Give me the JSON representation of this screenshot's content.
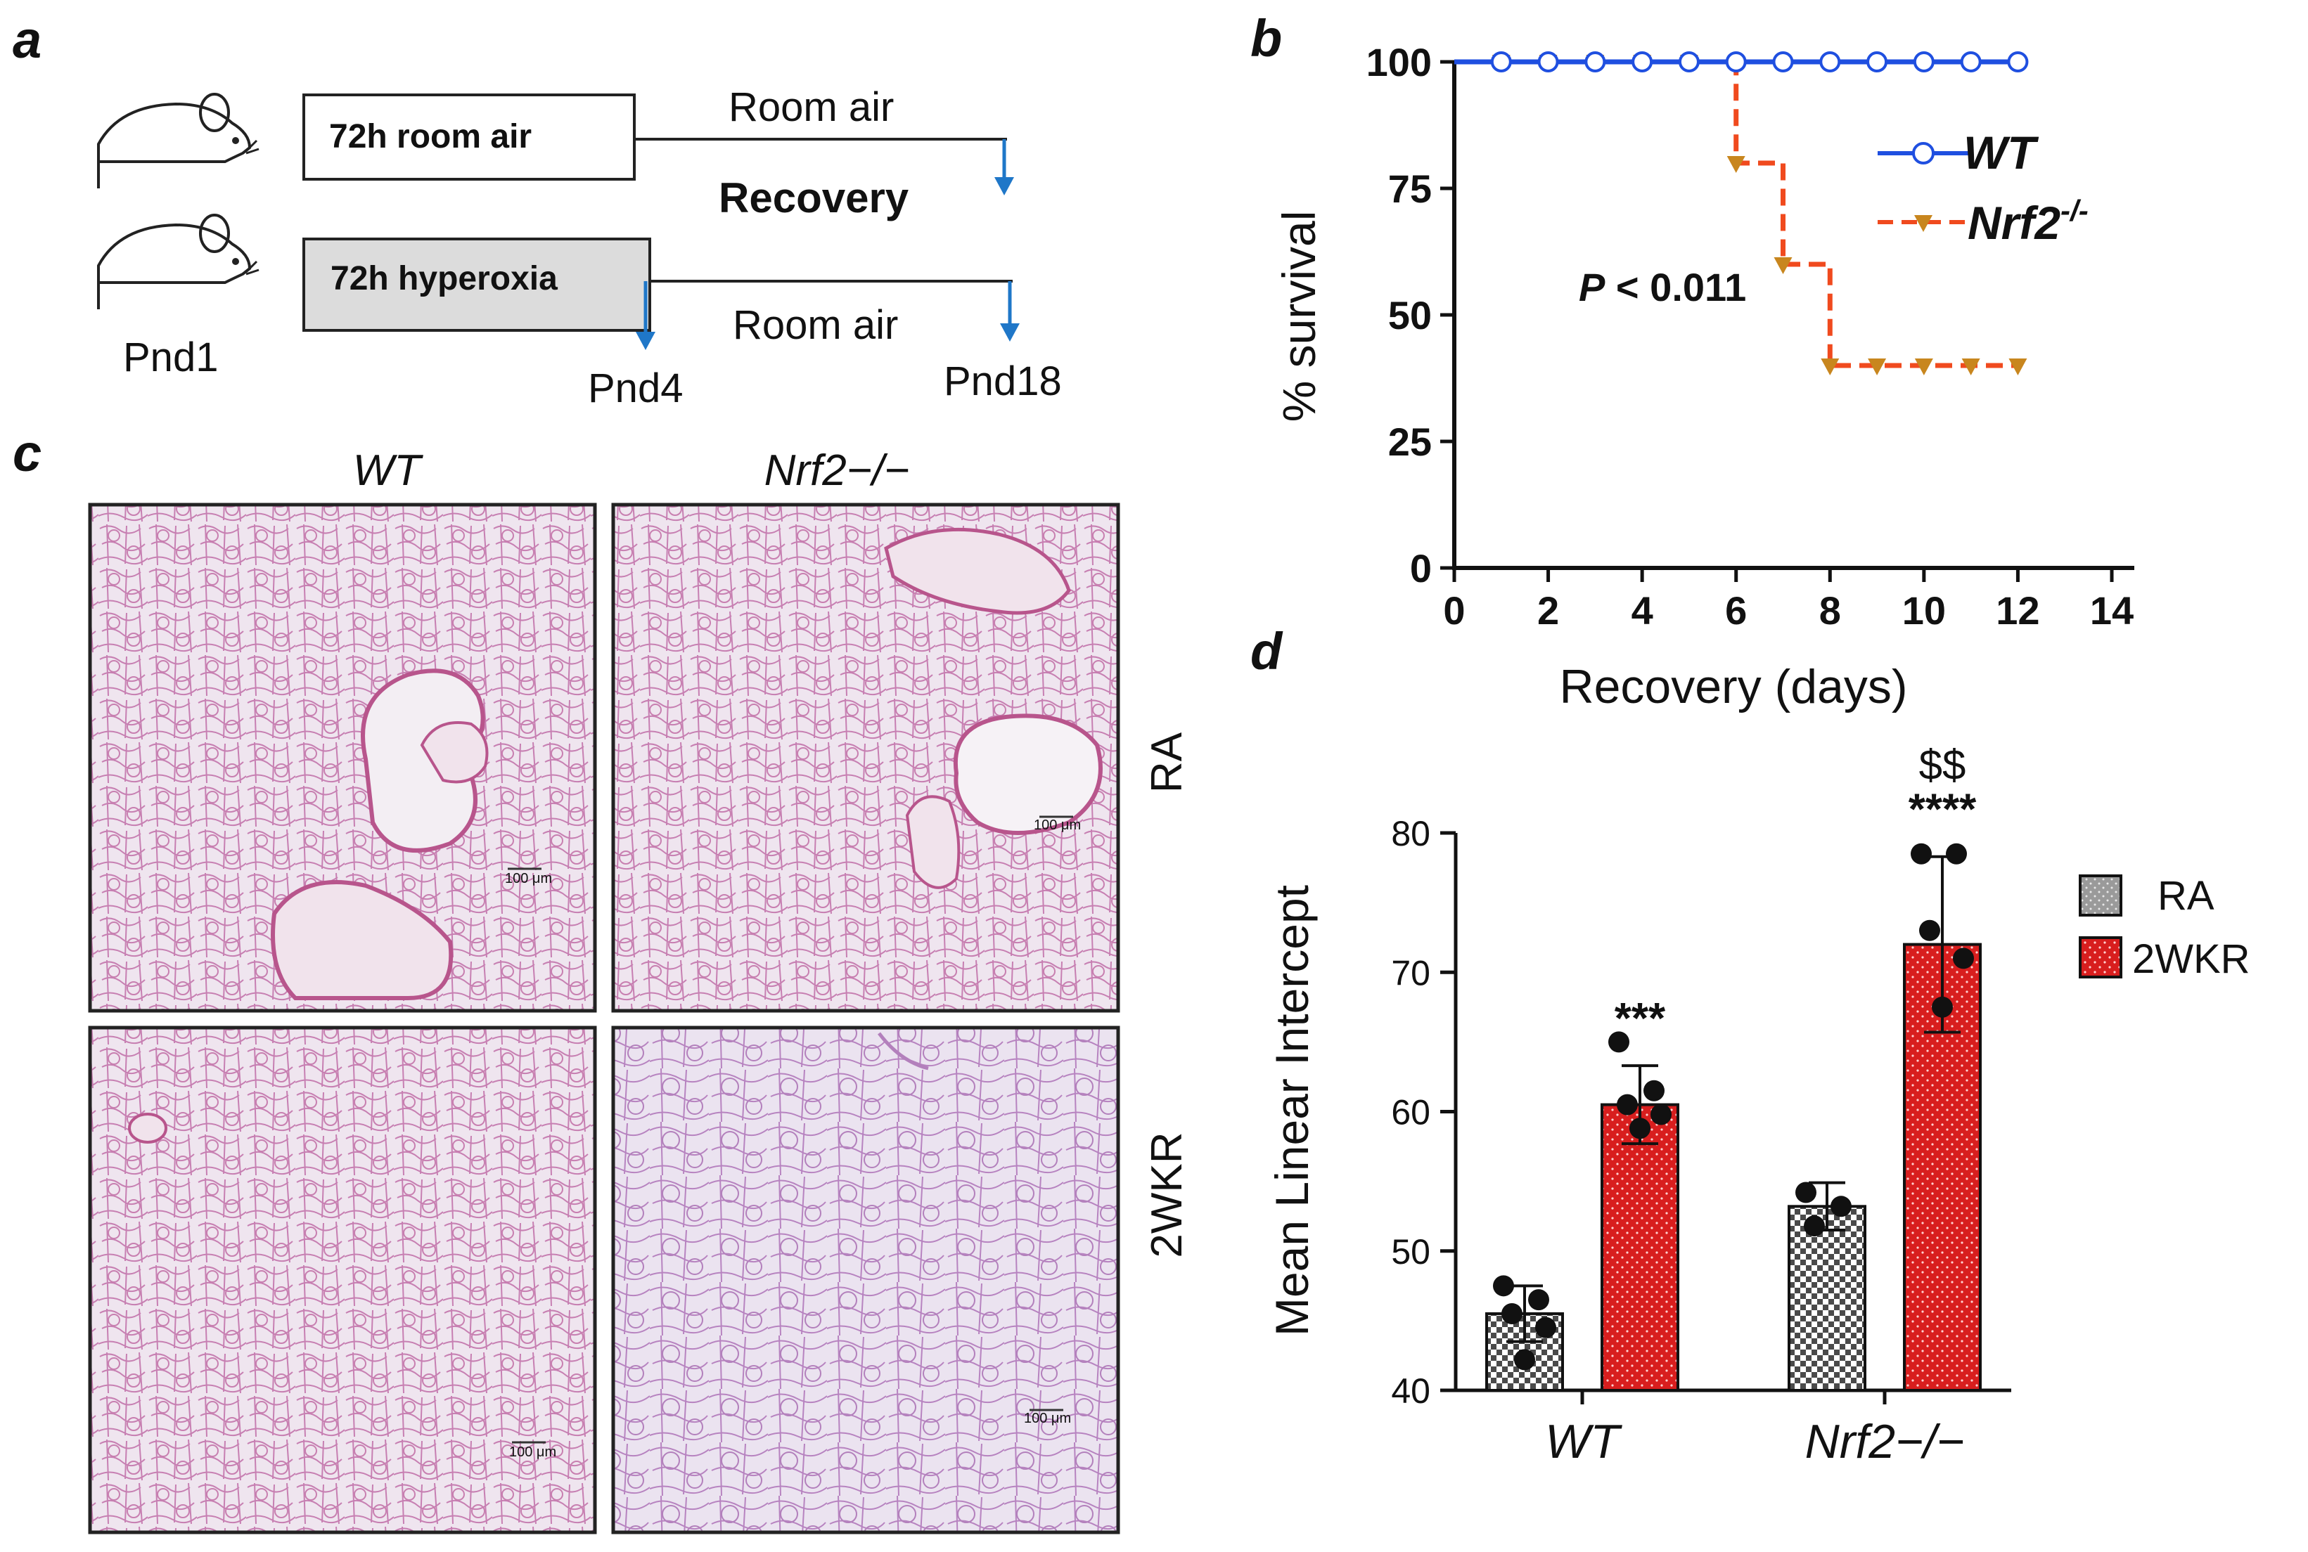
{
  "panels": {
    "a": "a",
    "b": "b",
    "c": "c",
    "d": "d"
  },
  "panel_a": {
    "group1_box": "72h room air",
    "group1_line_label": "Room air",
    "recovery_label": "Recovery",
    "group2_box": "72h hyperoxia",
    "group2_line_label": "Room air",
    "start_label": "Pnd1",
    "mid_label": "Pnd4",
    "end_label": "Pnd18",
    "colors": {
      "recovery": "#cc1f1f",
      "arrow": "#1f77c8",
      "box2_fill": "#dcdcdc"
    }
  },
  "panel_c": {
    "col_labels": [
      "WT",
      "Nrf2−/−"
    ],
    "row_labels": [
      "RA",
      "2WKR"
    ],
    "scale_bar": "100 μm",
    "colors": {
      "tissue": "#c87fb0",
      "background": "#e8dcea",
      "airway": "#b8558c"
    }
  },
  "chart_data": [
    {
      "type": "line",
      "title": "",
      "xlabel": "Recovery (days)",
      "ylabel": "% survival",
      "xlim": [
        0,
        14
      ],
      "ylim": [
        0,
        100
      ],
      "xticks": [
        0,
        2,
        4,
        6,
        8,
        10,
        12,
        14
      ],
      "yticks": [
        0,
        25,
        50,
        75,
        100
      ],
      "annotation": {
        "p_symbol": "P",
        "p_text": "< 0.011"
      },
      "series": [
        {
          "name": "WT",
          "color": "#1f4fe0",
          "marker": "circle",
          "style": "solid",
          "x": [
            1,
            2,
            3,
            4,
            5,
            6,
            7,
            8,
            9,
            10,
            11,
            12
          ],
          "y": [
            100,
            100,
            100,
            100,
            100,
            100,
            100,
            100,
            100,
            100,
            100,
            100
          ]
        },
        {
          "name": "Nrf2",
          "name_sup": "-/-",
          "color": "#f04a1e",
          "marker_color": "#c8861e",
          "marker": "triangle-down",
          "style": "dashed",
          "x": [
            1,
            2,
            3,
            4,
            5,
            6,
            7,
            8,
            9,
            10,
            11,
            12
          ],
          "y": [
            100,
            100,
            100,
            100,
            100,
            80,
            60,
            40,
            40,
            40,
            40,
            40
          ]
        }
      ]
    },
    {
      "type": "bar",
      "title": "",
      "xlabel": "",
      "ylabel": "Mean Linear Intercept",
      "ylim": [
        40,
        80
      ],
      "yticks": [
        40,
        50,
        60,
        70,
        80
      ],
      "categories": [
        "WT",
        "Nrf2−/−"
      ],
      "legend": [
        "RA",
        "2WKR"
      ],
      "series": [
        {
          "name": "RA",
          "color": "#888888",
          "values": [
            45.5,
            53.2
          ],
          "errors": [
            2.0,
            1.7
          ],
          "points": [
            [
              47.5,
              46.5,
              45.5,
              44.5,
              42.2
            ],
            [
              54.2,
              53.2,
              51.8
            ]
          ]
        },
        {
          "name": "2WKR",
          "color": "#d81e1e",
          "values": [
            60.5,
            72.0
          ],
          "errors": [
            2.8,
            6.3
          ],
          "points": [
            [
              65.0,
              61.5,
              60.5,
              59.8,
              58.8
            ],
            [
              78.5,
              78.5,
              73.0,
              71.0,
              67.5
            ]
          ]
        }
      ],
      "significance": [
        [
          "",
          "***"
        ],
        [
          "",
          "****"
        ]
      ],
      "significance_extra": [
        [
          "",
          ""
        ],
        [
          "",
          "$$"
        ]
      ],
      "sig_color": "#cc1f1f"
    }
  ]
}
